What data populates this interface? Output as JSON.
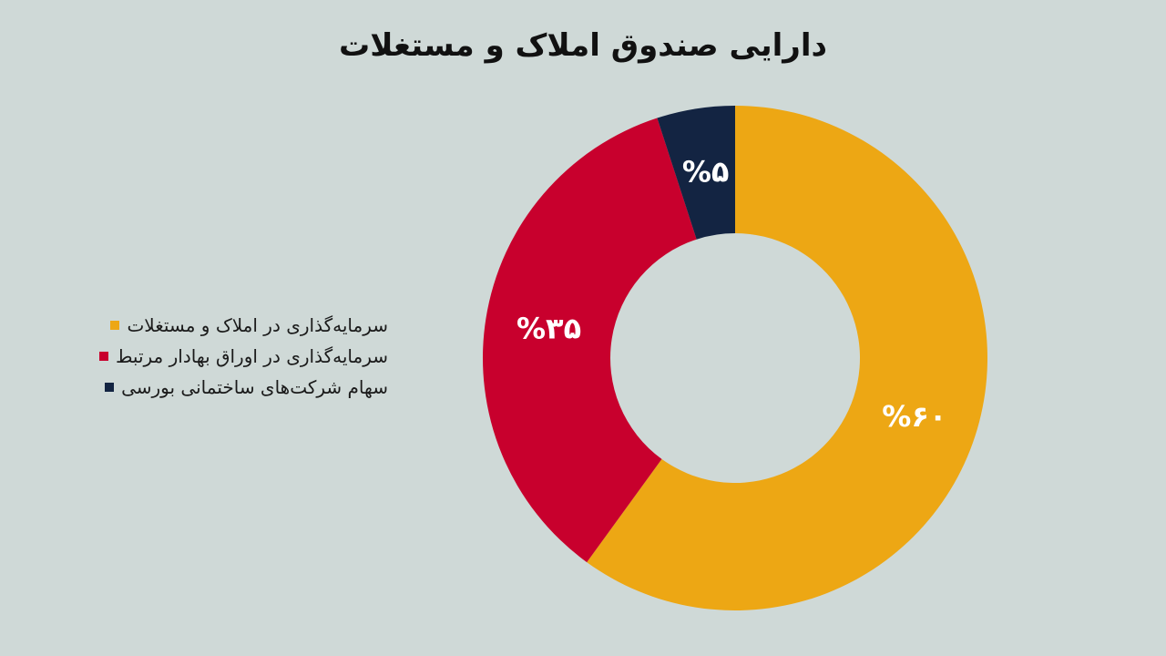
{
  "chart_data": {
    "type": "pie",
    "title": "دارایی صندوق املاک و مستغلات",
    "categories": [
      "سرمایه‌گذاری در املاک و مستغلات",
      "سرمایه‌گذاری در اوراق بهادار مرتبط",
      "سهام شرکت‌های ساختمانی بورسی"
    ],
    "values": [
      60,
      35,
      5
    ],
    "value_labels": [
      "%۶۰",
      "%۳۵",
      "%۵"
    ],
    "colors": [
      "#eda714",
      "#c8002d",
      "#132442"
    ],
    "donut": true,
    "legend_position": "left"
  }
}
